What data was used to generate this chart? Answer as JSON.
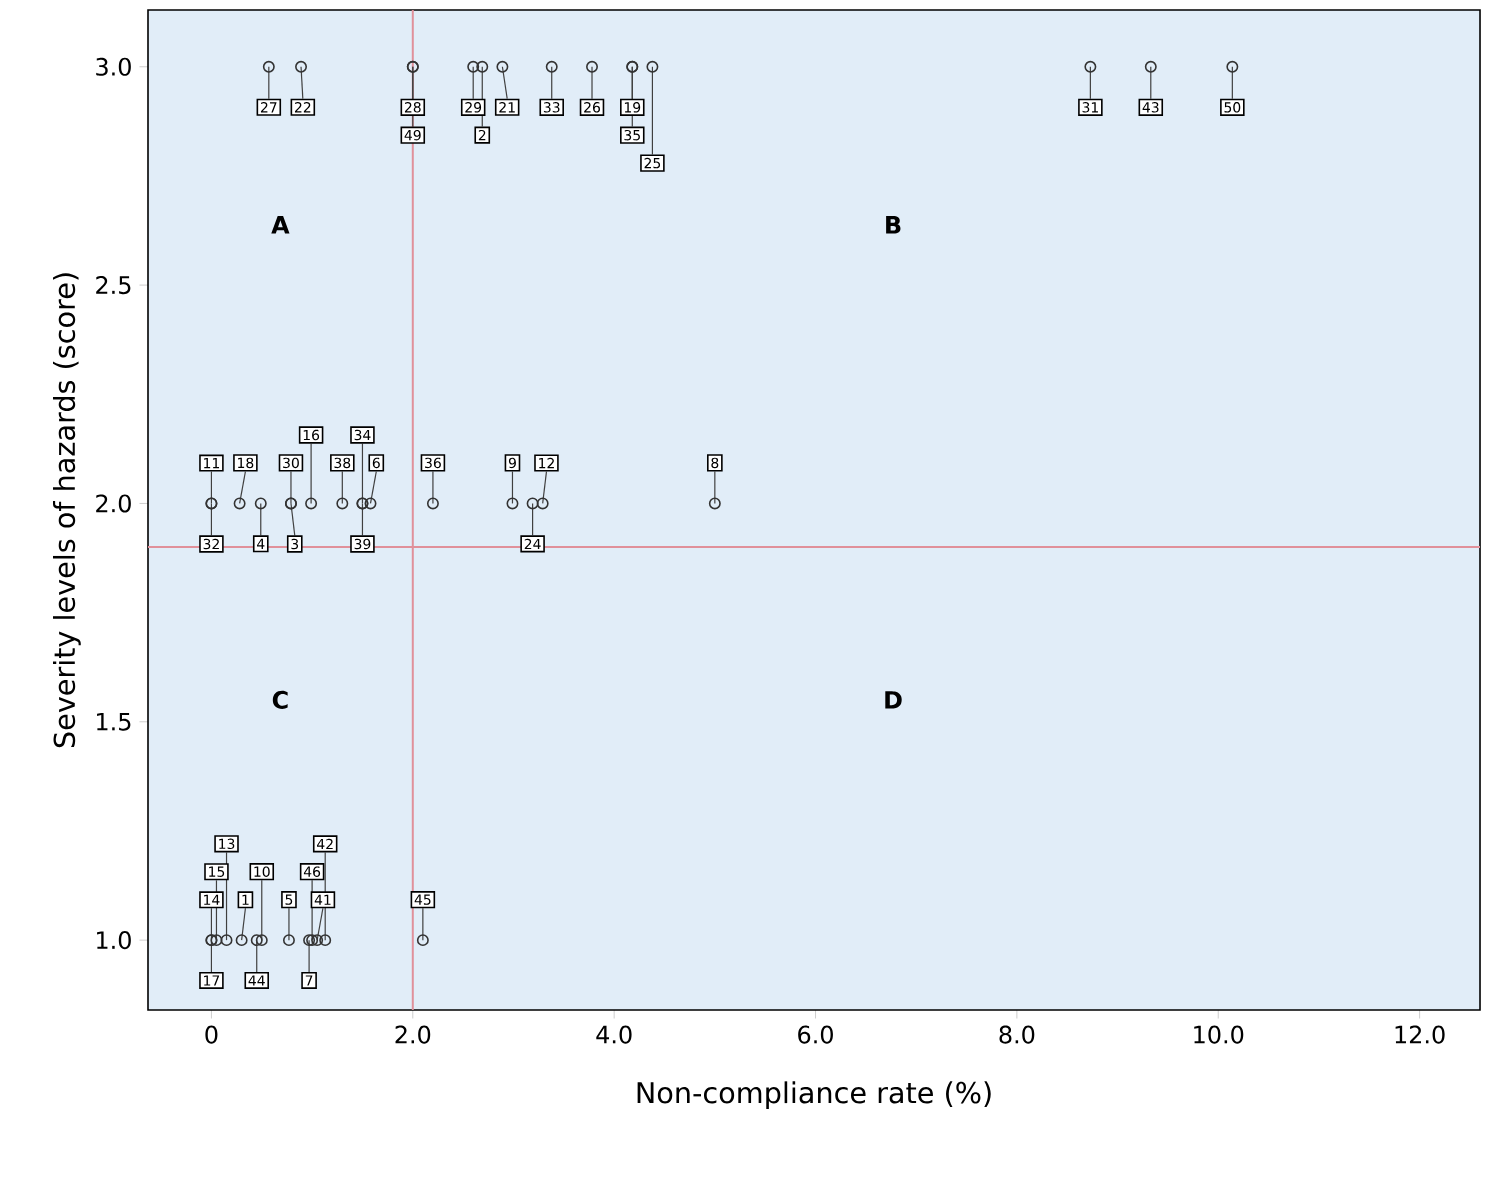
{
  "chart_data": {
    "type": "scatter",
    "xlabel": "Non-compliance rate (%)",
    "ylabel": "Severity levels of hazards (score)",
    "xlim": [
      -0.63,
      12.6
    ],
    "ylim": [
      0.84,
      3.13
    ],
    "xticks": [
      0,
      {
        "value": 2,
        "label": "2.0"
      },
      {
        "value": 4,
        "label": "4.0"
      },
      {
        "value": 6,
        "label": "6.0"
      },
      {
        "value": 8,
        "label": "8.0"
      },
      {
        "value": 10,
        "label": "10.0"
      },
      {
        "value": 12,
        "label": "12.0"
      }
    ],
    "yticks": [
      {
        "value": 1,
        "label": "1.0"
      },
      {
        "value": 1.5,
        "label": "1.5"
      },
      {
        "value": 2,
        "label": "2.0"
      },
      {
        "value": 2.5,
        "label": "2.5"
      },
      {
        "value": 3,
        "label": "3.0"
      }
    ],
    "marker": "circle",
    "grid": false,
    "ref_lines": [
      {
        "axis": "x",
        "value": 2,
        "color": "#e0909a"
      },
      {
        "axis": "y",
        "value": 1.9,
        "color": "#e0909a"
      }
    ],
    "series": [
      {
        "color": "#333333",
        "x": [
          0.57,
          0.89,
          2.0,
          2.0,
          2.6,
          2.69,
          2.89,
          3.38,
          3.78,
          4.18,
          4.18,
          4.38,
          8.73,
          9.33,
          10.14,
          0.0,
          0.0,
          0.28,
          0.49,
          0.79,
          0.79,
          0.99,
          1.3,
          1.5,
          1.5,
          1.58,
          2.2,
          2.99,
          3.19,
          3.29,
          5.0,
          0.0,
          0.0,
          0.05,
          0.15,
          0.3,
          0.45,
          0.5,
          0.77,
          0.97,
          1.0,
          1.05,
          1.13,
          2.1
        ],
        "values": [
          3,
          3,
          3,
          3,
          3,
          3,
          3,
          3,
          3,
          3,
          3,
          3,
          3,
          3,
          3,
          2,
          2,
          2,
          2,
          2,
          2,
          2,
          2,
          2,
          2,
          2,
          2,
          2,
          2,
          2,
          2,
          1,
          1,
          1,
          1,
          1,
          1,
          1,
          1,
          1,
          1,
          1,
          1,
          1
        ]
      }
    ],
    "annotations": [
      "A",
      "B",
      "C",
      "D",
      {
        "text": "27",
        "x": 0.57,
        "y": 3
      },
      {
        "text": "22",
        "x": 0.89,
        "y": 3
      },
      {
        "text": "28",
        "x": 2.0,
        "y": 3
      },
      {
        "text": "49",
        "x": 2.0,
        "y": 3
      },
      {
        "text": "29",
        "x": 2.6,
        "y": 3
      },
      {
        "text": "2",
        "x": 2.69,
        "y": 3
      },
      {
        "text": "21",
        "x": 2.89,
        "y": 3
      },
      {
        "text": "33",
        "x": 3.38,
        "y": 3
      },
      {
        "text": "26",
        "x": 3.78,
        "y": 3
      },
      {
        "text": "19",
        "x": 4.18,
        "y": 3
      },
      {
        "text": "35",
        "x": 4.18,
        "y": 3
      },
      {
        "text": "25",
        "x": 4.38,
        "y": 3
      },
      {
        "text": "31",
        "x": 8.73,
        "y": 3
      },
      {
        "text": "43",
        "x": 9.33,
        "y": 3
      },
      {
        "text": "50",
        "x": 10.14,
        "y": 3
      },
      {
        "text": "11",
        "x": 0.0,
        "y": 2
      },
      {
        "text": "32",
        "x": 0.0,
        "y": 2
      },
      {
        "text": "18",
        "x": 0.28,
        "y": 2
      },
      {
        "text": "4",
        "x": 0.49,
        "y": 2
      },
      {
        "text": "30",
        "x": 0.79,
        "y": 2
      },
      {
        "text": "3",
        "x": 0.79,
        "y": 2
      },
      {
        "text": "16",
        "x": 0.99,
        "y": 2
      },
      {
        "text": "38",
        "x": 1.3,
        "y": 2
      },
      {
        "text": "39",
        "x": 1.5,
        "y": 2
      },
      {
        "text": "34",
        "x": 1.5,
        "y": 2
      },
      {
        "text": "6",
        "x": 1.58,
        "y": 2
      },
      {
        "text": "36",
        "x": 2.2,
        "y": 2
      },
      {
        "text": "9",
        "x": 2.99,
        "y": 2
      },
      {
        "text": "24",
        "x": 3.19,
        "y": 2
      },
      {
        "text": "12",
        "x": 3.29,
        "y": 2
      },
      {
        "text": "8",
        "x": 5.0,
        "y": 2
      },
      {
        "text": "14",
        "x": 0.0,
        "y": 1
      },
      {
        "text": "17",
        "x": 0.0,
        "y": 1
      },
      {
        "text": "15",
        "x": 0.05,
        "y": 1
      },
      {
        "text": "13",
        "x": 0.15,
        "y": 1
      },
      {
        "text": "1",
        "x": 0.3,
        "y": 1
      },
      {
        "text": "44",
        "x": 0.45,
        "y": 1
      },
      {
        "text": "10",
        "x": 0.5,
        "y": 1
      },
      {
        "text": "5",
        "x": 0.77,
        "y": 1
      },
      {
        "text": "7",
        "x": 0.97,
        "y": 1
      },
      {
        "text": "46",
        "x": 1.0,
        "y": 1
      },
      {
        "text": "41",
        "x": 1.05,
        "y": 1
      },
      {
        "text": "42",
        "x": 1.13,
        "y": 1
      },
      {
        "text": "45",
        "x": 2.1,
        "y": 1
      }
    ]
  }
}
